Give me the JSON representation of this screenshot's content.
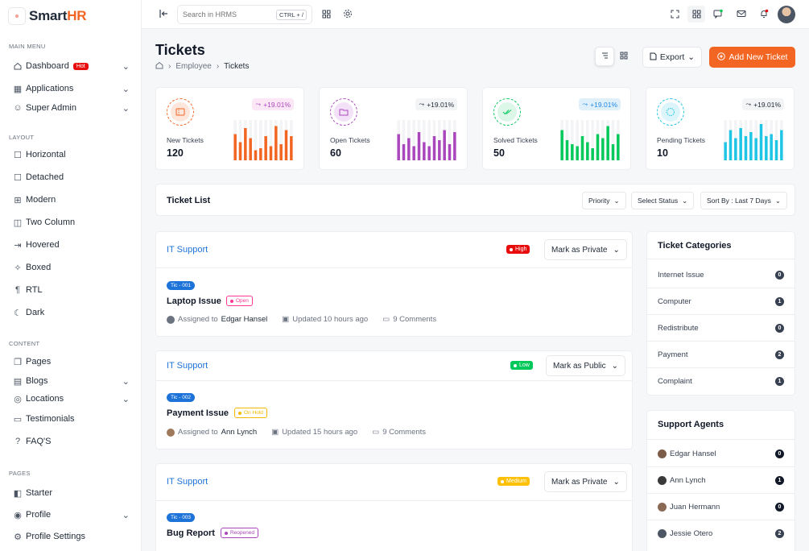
{
  "brand": {
    "name_main": "Smart",
    "name_accent": "HR"
  },
  "sidebar": {
    "sections": [
      "MAIN MENU",
      "LAYOUT",
      "CONTENT",
      "PAGES"
    ],
    "main": [
      {
        "label": "Dashboard",
        "badge": "Hot"
      },
      {
        "label": "Applications"
      },
      {
        "label": "Super Admin"
      }
    ],
    "layout": [
      "Horizontal",
      "Detached",
      "Modern",
      "Two Column",
      "Hovered",
      "Boxed",
      "RTL",
      "Dark"
    ],
    "content": [
      "Pages",
      "Blogs",
      "Locations",
      "Testimonials",
      "FAQ'S"
    ],
    "pages": [
      "Starter",
      "Profile",
      "Profile Settings"
    ]
  },
  "topbar": {
    "search_placeholder": "Search in HRMS",
    "shortcut": "CTRL + /"
  },
  "page": {
    "title": "Tickets",
    "breadcrumb": [
      "Employee",
      "Tickets"
    ],
    "export_label": "Export",
    "add_label": "Add New Ticket"
  },
  "stats": [
    {
      "title": "New Tickets",
      "value": "120",
      "trend": "+19.01%",
      "color": "#f26522",
      "tint": "#fde6dc",
      "trendbg": "#fbe7f5",
      "trendfg": "#ab47bc",
      "bars": [
        0.65,
        0.45,
        0.8,
        0.55,
        0.25,
        0.3,
        0.6,
        0.35,
        0.85,
        0.4,
        0.75,
        0.6
      ]
    },
    {
      "title": "Open Tickets",
      "value": "60",
      "trend": "+19.01%",
      "color": "#ab47bc",
      "tint": "#f3e2f7",
      "trendbg": "#f3f4f6",
      "trendfg": "#1f2937",
      "bars": [
        0.65,
        0.4,
        0.55,
        0.35,
        0.7,
        0.45,
        0.35,
        0.6,
        0.5,
        0.75,
        0.4,
        0.7
      ]
    },
    {
      "title": "Solved Tickets",
      "value": "50",
      "trend": "+19.01%",
      "color": "#03c95a",
      "tint": "#dcf7e8",
      "trendbg": "#e0f0fb",
      "trendfg": "#1e88e5",
      "bars": [
        0.75,
        0.5,
        0.4,
        0.35,
        0.6,
        0.45,
        0.3,
        0.65,
        0.55,
        0.85,
        0.4,
        0.65
      ]
    },
    {
      "title": "Pending Tickets",
      "value": "10",
      "trend": "+19.01%",
      "color": "#1ec5e4",
      "tint": "#dcf5fa",
      "trendbg": "#f3f4f6",
      "trendfg": "#1f2937",
      "bars": [
        0.45,
        0.75,
        0.55,
        0.8,
        0.6,
        0.7,
        0.55,
        0.9,
        0.6,
        0.65,
        0.5,
        0.75
      ]
    }
  ],
  "ticket_list": {
    "title": "Ticket List",
    "filters": [
      "Priority",
      "Select Status",
      "Sort By : Last 7 Days"
    ]
  },
  "tickets": [
    {
      "category": "IT Support",
      "priority": "High",
      "prio_color": "#e70d0d",
      "privacy": "Mark as Private",
      "id": "Tic - 001",
      "title": "Laptop Issue",
      "status": "Open",
      "status_color": "#fd3995",
      "assignee_label": "Assigned to",
      "assignee": "Edgar Hansel",
      "updated": "Updated 10 hours ago",
      "comments": "9 Comments"
    },
    {
      "category": "IT Support",
      "priority": "Low",
      "prio_color": "#03c95a",
      "privacy": "Mark as Public",
      "id": "Tic - 002",
      "title": "Payment Issue",
      "status": "On Hold",
      "status_color": "#f5b800",
      "assignee_label": "Assigned to",
      "assignee": "Ann Lynch",
      "updated": "Updated 15 hours ago",
      "comments": "9 Comments"
    },
    {
      "category": "IT Support",
      "priority": "Medium",
      "prio_color": "#ffc107",
      "privacy": "Mark as Private",
      "id": "Tic - 003",
      "title": "Bug Report",
      "status": "Reopened",
      "status_color": "#ab47bc"
    }
  ],
  "categories": {
    "title": "Ticket Categories",
    "items": [
      {
        "label": "Internet Issue",
        "count": "0"
      },
      {
        "label": "Computer",
        "count": "1"
      },
      {
        "label": "Redistribute",
        "count": "0"
      },
      {
        "label": "Payment",
        "count": "2"
      },
      {
        "label": "Complaint",
        "count": "1"
      }
    ]
  },
  "agents": {
    "title": "Support Agents",
    "items": [
      {
        "label": "Edgar Hansel",
        "count": "0"
      },
      {
        "label": "Ann Lynch",
        "count": "1"
      },
      {
        "label": "Juan Hermann",
        "count": "0"
      },
      {
        "label": "Jessie Otero",
        "count": "2"
      }
    ]
  }
}
